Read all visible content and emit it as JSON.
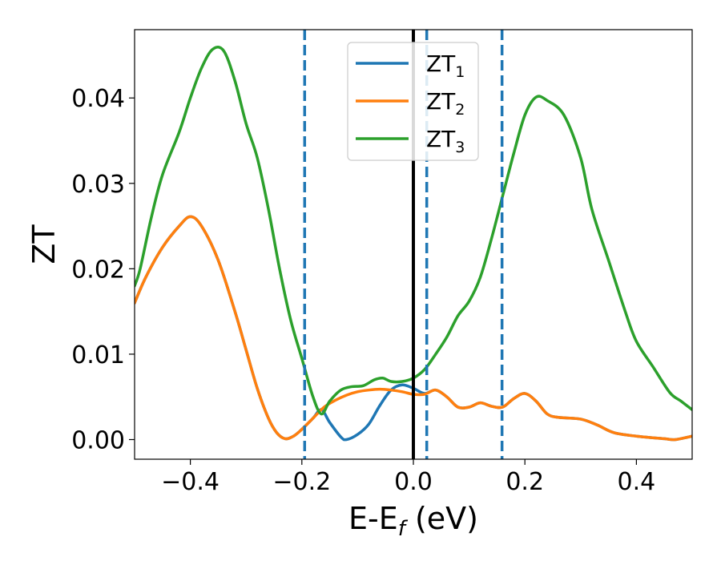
{
  "chart_data": {
    "type": "line",
    "xlabel": "E-E",
    "xlabel_sub": "f",
    "xlabel_unit": " (eV)",
    "ylabel": "ZT",
    "xlim": [
      -0.5,
      0.5
    ],
    "ylim": [
      -0.0023,
      0.048
    ],
    "grid": false,
    "legend_position": "top-center",
    "x_ticks": [
      -0.4,
      -0.2,
      0.0,
      0.2,
      0.4
    ],
    "x_tick_labels": [
      "−0.4",
      "−0.2",
      "0.0",
      "0.2",
      "0.4"
    ],
    "y_ticks": [
      0.0,
      0.01,
      0.02,
      0.03,
      0.04
    ],
    "y_tick_labels": [
      "0.00",
      "0.01",
      "0.02",
      "0.03",
      "0.04"
    ],
    "series": [
      {
        "name": "ZT",
        "name_sub": "1",
        "color": "#1f77b4",
        "points": [
          [
            -0.5,
            0.016
          ],
          [
            -0.48,
            0.019
          ],
          [
            -0.45,
            0.0225
          ],
          [
            -0.42,
            0.025
          ],
          [
            -0.4,
            0.0261
          ],
          [
            -0.38,
            0.025
          ],
          [
            -0.35,
            0.021
          ],
          [
            -0.32,
            0.015
          ],
          [
            -0.3,
            0.0105
          ],
          [
            -0.28,
            0.006
          ],
          [
            -0.26,
            0.0025
          ],
          [
            -0.245,
            0.0008
          ],
          [
            -0.23,
            0.0001
          ],
          [
            -0.215,
            0.0004
          ],
          [
            -0.2,
            0.0012
          ],
          [
            -0.18,
            0.0025
          ],
          [
            -0.165,
            0.0035
          ],
          [
            -0.15,
            0.002
          ],
          [
            -0.13,
            0.0003
          ],
          [
            -0.12,
            0.0
          ],
          [
            -0.1,
            0.0006
          ],
          [
            -0.08,
            0.0018
          ],
          [
            -0.06,
            0.004
          ],
          [
            -0.04,
            0.0058
          ],
          [
            -0.02,
            0.0064
          ],
          [
            0.0,
            0.006
          ],
          [
            0.02,
            0.0054
          ],
          [
            0.04,
            0.0058
          ],
          [
            0.06,
            0.005
          ],
          [
            0.08,
            0.0038
          ],
          [
            0.1,
            0.0038
          ],
          [
            0.12,
            0.0043
          ],
          [
            0.14,
            0.0039
          ],
          [
            0.16,
            0.0038
          ],
          [
            0.18,
            0.0048
          ],
          [
            0.2,
            0.0054
          ],
          [
            0.22,
            0.0045
          ],
          [
            0.24,
            0.003
          ],
          [
            0.26,
            0.0026
          ],
          [
            0.3,
            0.0024
          ],
          [
            0.33,
            0.0017
          ],
          [
            0.36,
            0.0008
          ],
          [
            0.4,
            0.0004
          ],
          [
            0.45,
            0.0001
          ],
          [
            0.47,
            0.0
          ],
          [
            0.5,
            0.0004
          ]
        ]
      },
      {
        "name": "ZT",
        "name_sub": "2",
        "color": "#ff7f0e",
        "points": [
          [
            -0.5,
            0.016
          ],
          [
            -0.48,
            0.019
          ],
          [
            -0.45,
            0.0225
          ],
          [
            -0.42,
            0.025
          ],
          [
            -0.4,
            0.0261
          ],
          [
            -0.38,
            0.025
          ],
          [
            -0.35,
            0.021
          ],
          [
            -0.32,
            0.015
          ],
          [
            -0.3,
            0.0105
          ],
          [
            -0.28,
            0.006
          ],
          [
            -0.26,
            0.0025
          ],
          [
            -0.245,
            0.0008
          ],
          [
            -0.23,
            0.0001
          ],
          [
            -0.215,
            0.0004
          ],
          [
            -0.2,
            0.0012
          ],
          [
            -0.18,
            0.0025
          ],
          [
            -0.16,
            0.0038
          ],
          [
            -0.14,
            0.0046
          ],
          [
            -0.12,
            0.0052
          ],
          [
            -0.1,
            0.0056
          ],
          [
            -0.08,
            0.0058
          ],
          [
            -0.06,
            0.0059
          ],
          [
            -0.04,
            0.0058
          ],
          [
            -0.02,
            0.0056
          ],
          [
            0.0,
            0.0053
          ],
          [
            0.02,
            0.0053
          ],
          [
            0.04,
            0.0058
          ],
          [
            0.06,
            0.005
          ],
          [
            0.08,
            0.0038
          ],
          [
            0.1,
            0.0038
          ],
          [
            0.12,
            0.0043
          ],
          [
            0.14,
            0.0039
          ],
          [
            0.16,
            0.0038
          ],
          [
            0.18,
            0.0048
          ],
          [
            0.2,
            0.0054
          ],
          [
            0.22,
            0.0045
          ],
          [
            0.24,
            0.003
          ],
          [
            0.26,
            0.0026
          ],
          [
            0.3,
            0.0024
          ],
          [
            0.33,
            0.0017
          ],
          [
            0.36,
            0.0008
          ],
          [
            0.4,
            0.0004
          ],
          [
            0.45,
            0.0001
          ],
          [
            0.47,
            0.0
          ],
          [
            0.5,
            0.0004
          ]
        ]
      },
      {
        "name": "ZT",
        "name_sub": "3",
        "color": "#2ca02c",
        "points": [
          [
            -0.5,
            0.018
          ],
          [
            -0.49,
            0.02
          ],
          [
            -0.47,
            0.026
          ],
          [
            -0.45,
            0.031
          ],
          [
            -0.42,
            0.036
          ],
          [
            -0.4,
            0.04
          ],
          [
            -0.38,
            0.0435
          ],
          [
            -0.36,
            0.0457
          ],
          [
            -0.34,
            0.0455
          ],
          [
            -0.32,
            0.042
          ],
          [
            -0.3,
            0.037
          ],
          [
            -0.28,
            0.033
          ],
          [
            -0.26,
            0.027
          ],
          [
            -0.24,
            0.02
          ],
          [
            -0.22,
            0.014
          ],
          [
            -0.2,
            0.0095
          ],
          [
            -0.18,
            0.005
          ],
          [
            -0.165,
            0.003
          ],
          [
            -0.15,
            0.0045
          ],
          [
            -0.13,
            0.0058
          ],
          [
            -0.11,
            0.0062
          ],
          [
            -0.09,
            0.0063
          ],
          [
            -0.07,
            0.007
          ],
          [
            -0.055,
            0.0072
          ],
          [
            -0.04,
            0.0068
          ],
          [
            -0.02,
            0.0068
          ],
          [
            0.0,
            0.0072
          ],
          [
            0.02,
            0.0082
          ],
          [
            0.04,
            0.01
          ],
          [
            0.06,
            0.012
          ],
          [
            0.08,
            0.0145
          ],
          [
            0.1,
            0.0162
          ],
          [
            0.12,
            0.019
          ],
          [
            0.14,
            0.0235
          ],
          [
            0.16,
            0.0285
          ],
          [
            0.18,
            0.0335
          ],
          [
            0.2,
            0.038
          ],
          [
            0.22,
            0.0401
          ],
          [
            0.24,
            0.0397
          ],
          [
            0.27,
            0.038
          ],
          [
            0.3,
            0.033
          ],
          [
            0.32,
            0.027
          ],
          [
            0.35,
            0.021
          ],
          [
            0.38,
            0.015
          ],
          [
            0.4,
            0.0115
          ],
          [
            0.43,
            0.0085
          ],
          [
            0.46,
            0.0055
          ],
          [
            0.48,
            0.0045
          ],
          [
            0.5,
            0.0035
          ]
        ]
      }
    ],
    "vertical_lines": [
      {
        "x": 0.0,
        "style": "solid",
        "color": "#000000"
      },
      {
        "x": -0.195,
        "style": "dashed",
        "color": "#1f77b4"
      },
      {
        "x": 0.024,
        "style": "dashed",
        "color": "#1f77b4"
      },
      {
        "x": 0.159,
        "style": "dashed",
        "color": "#1f77b4"
      }
    ]
  }
}
